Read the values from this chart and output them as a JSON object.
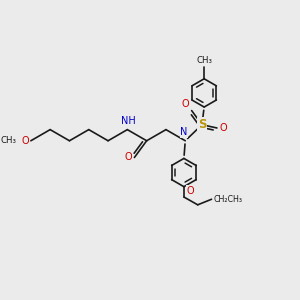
{
  "bg_color": "#ebebeb",
  "bond_color": "#1a1a1a",
  "bond_width": 1.2,
  "N_color": "#0000cc",
  "O_color": "#cc0000",
  "S_color": "#b8960c",
  "figsize": [
    3.0,
    3.0
  ],
  "dpi": 100,
  "xlim": [
    0,
    10
  ],
  "ylim": [
    0,
    10
  ]
}
